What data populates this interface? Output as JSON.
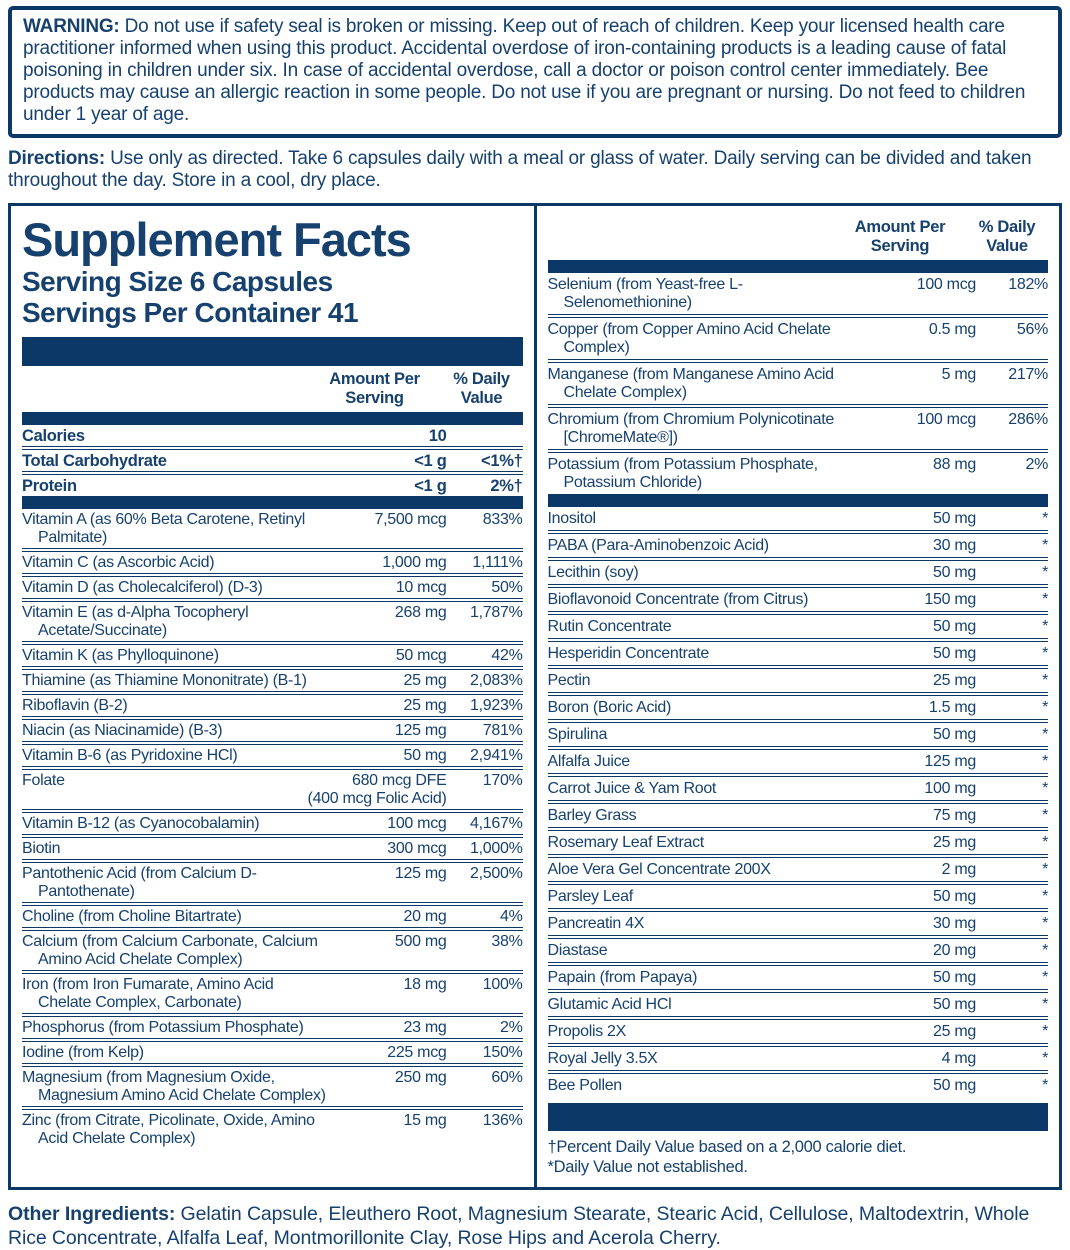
{
  "colors": {
    "navy": "#0b3866",
    "text": "#16416f",
    "background": "#ffffff"
  },
  "warning": {
    "label": "WARNING:",
    "text": "Do not use if safety seal is broken or missing. Keep out of reach of children. Keep your licensed health care practitioner informed when using this product. Accidental overdose of iron-containing products is a leading cause of fatal poisoning in children under six. In case of accidental overdose, call a doctor or poison control center immediately. Bee products may cause an allergic reaction in some people. Do not use if you are pregnant or nursing. Do not feed to children under 1 year of age."
  },
  "directions": {
    "label": "Directions:",
    "text": "Use only as directed. Take 6 capsules daily with a meal or glass of water. Daily serving can be divided and taken throughout the day. Store in a cool, dry place."
  },
  "panel": {
    "title": "Supplement Facts",
    "serving_size": "Serving Size 6 Capsules",
    "servings_per_container": "Servings Per Container 41",
    "header": {
      "amount_line1": "Amount Per",
      "amount_line2": "Serving",
      "daily_line1": "% Daily",
      "daily_line2": "Value"
    },
    "macro_rows": [
      {
        "name": "Calories",
        "amount": "10",
        "dv": ""
      },
      {
        "name": "Total Carbohydrate",
        "amount": "<1 g",
        "dv": "<1%†"
      },
      {
        "name": "Protein",
        "amount": "<1 g",
        "dv": "2%†"
      }
    ],
    "vitamin_rows": [
      {
        "name": "Vitamin A (as 60% Beta Carotene, Retinyl Palmitate)",
        "amount": "7,500 mcg",
        "dv": "833%"
      },
      {
        "name": "Vitamin C (as Ascorbic Acid)",
        "amount": "1,000 mg",
        "dv": "1,111%"
      },
      {
        "name": "Vitamin D (as Cholecalciferol) (D-3)",
        "amount": "10 mcg",
        "dv": "50%"
      },
      {
        "name": "Vitamin E (as d-Alpha Tocopheryl Acetate/Succinate)",
        "amount": "268 mg",
        "dv": "1,787%"
      },
      {
        "name": "Vitamin K (as Phylloquinone)",
        "amount": "50 mcg",
        "dv": "42%"
      },
      {
        "name": "Thiamine (as Thiamine Mononitrate) (B-1)",
        "amount": "25 mg",
        "dv": "2,083%"
      },
      {
        "name": "Riboflavin (B-2)",
        "amount": "25 mg",
        "dv": "1,923%"
      },
      {
        "name": "Niacin (as Niacinamide) (B-3)",
        "amount": "125 mg",
        "dv": "781%"
      },
      {
        "name": "Vitamin B-6 (as Pyridoxine HCl)",
        "amount": "50 mg",
        "dv": "2,941%"
      },
      {
        "name": "Folate",
        "amount": "680 mcg DFE",
        "dv": "170%",
        "note": "(400 mcg Folic Acid)"
      },
      {
        "name": "Vitamin B-12 (as Cyanocobalamin)",
        "amount": "100 mcg",
        "dv": "4,167%"
      },
      {
        "name": "Biotin",
        "amount": "300 mcg",
        "dv": "1,000%"
      },
      {
        "name": "Pantothenic Acid (from Calcium D-Pantothenate)",
        "amount": "125 mg",
        "dv": "2,500%"
      },
      {
        "name": "Choline (from Choline Bitartrate)",
        "amount": "20 mg",
        "dv": "4%"
      },
      {
        "name": "Calcium (from Calcium Carbonate, Calcium Amino Acid Chelate Complex)",
        "amount": "500 mg",
        "dv": "38%"
      },
      {
        "name": "Iron (from Iron Fumarate, Amino Acid Chelate Complex, Carbonate)",
        "amount": "18 mg",
        "dv": "100%"
      },
      {
        "name": "Phosphorus (from Potassium Phosphate)",
        "amount": "23 mg",
        "dv": "2%"
      },
      {
        "name": "Iodine (from Kelp)",
        "amount": "225 mcg",
        "dv": "150%"
      },
      {
        "name": "Magnesium (from Magnesium Oxide, Magnesium Amino Acid Chelate Complex)",
        "amount": "250 mg",
        "dv": "60%"
      },
      {
        "name": "Zinc (from Citrate, Picolinate, Oxide, Amino Acid Chelate Complex)",
        "amount": "15 mg",
        "dv": "136%"
      }
    ],
    "mineral_rows": [
      {
        "name": "Selenium (from Yeast-free L-Selenomethionine)",
        "amount": "100 mcg",
        "dv": "182%"
      },
      {
        "name": "Copper (from Copper Amino Acid Chelate Complex)",
        "amount": "0.5 mg",
        "dv": "56%"
      },
      {
        "name": "Manganese (from Manganese Amino Acid Chelate Complex)",
        "amount": "5 mg",
        "dv": "217%"
      },
      {
        "name": "Chromium (from Chromium Polynicotinate [ChromeMate®])",
        "amount": "100 mcg",
        "dv": "286%"
      },
      {
        "name": "Potassium (from Potassium Phosphate, Potassium Chloride)",
        "amount": "88 mg",
        "dv": "2%"
      }
    ],
    "other_rows": [
      {
        "name": "Inositol",
        "amount": "50 mg",
        "dv": "*"
      },
      {
        "name": "PABA (Para-Aminobenzoic Acid)",
        "amount": "30 mg",
        "dv": "*"
      },
      {
        "name": "Lecithin (soy)",
        "amount": "50 mg",
        "dv": "*"
      },
      {
        "name": "Bioflavonoid Concentrate (from Citrus)",
        "amount": "150 mg",
        "dv": "*"
      },
      {
        "name": "Rutin Concentrate",
        "amount": "50 mg",
        "dv": "*"
      },
      {
        "name": "Hesperidin Concentrate",
        "amount": "50 mg",
        "dv": "*"
      },
      {
        "name": "Pectin",
        "amount": "25 mg",
        "dv": "*"
      },
      {
        "name": "Boron (Boric Acid)",
        "amount": "1.5 mg",
        "dv": "*"
      },
      {
        "name": "Spirulina",
        "amount": "50 mg",
        "dv": "*"
      },
      {
        "name": "Alfalfa Juice",
        "amount": "125 mg",
        "dv": "*"
      },
      {
        "name": "Carrot Juice & Yam Root",
        "amount": "100 mg",
        "dv": "*"
      },
      {
        "name": "Barley Grass",
        "amount": "75 mg",
        "dv": "*"
      },
      {
        "name": "Rosemary Leaf Extract",
        "amount": "25 mg",
        "dv": "*"
      },
      {
        "name": "Aloe Vera Gel Concentrate 200X",
        "amount": "2 mg",
        "dv": "*"
      },
      {
        "name": "Parsley Leaf",
        "amount": "50 mg",
        "dv": "*"
      },
      {
        "name": "Pancreatin 4X",
        "amount": "30 mg",
        "dv": "*"
      },
      {
        "name": "Diastase",
        "amount": "20 mg",
        "dv": "*"
      },
      {
        "name": "Papain (from Papaya)",
        "amount": "50 mg",
        "dv": "*"
      },
      {
        "name": "Glutamic Acid HCl",
        "amount": "50 mg",
        "dv": "*"
      },
      {
        "name": "Propolis 2X",
        "amount": "25 mg",
        "dv": "*"
      },
      {
        "name": "Royal Jelly 3.5X",
        "amount": "4 mg",
        "dv": "*"
      },
      {
        "name": "Bee Pollen",
        "amount": "50 mg",
        "dv": "*"
      }
    ],
    "footnotes": [
      "†Percent Daily Value based on a 2,000 calorie diet.",
      "*Daily Value not established."
    ]
  },
  "other_ingredients": {
    "label": "Other Ingredients:",
    "text": "Gelatin Capsule, Eleuthero Root, Magnesium Stearate, Stearic Acid, Cellulose, Maltodextrin, Whole Rice Concentrate, Alfalfa Leaf, Montmorillonite Clay, Rose Hips and Acerola Cherry."
  }
}
